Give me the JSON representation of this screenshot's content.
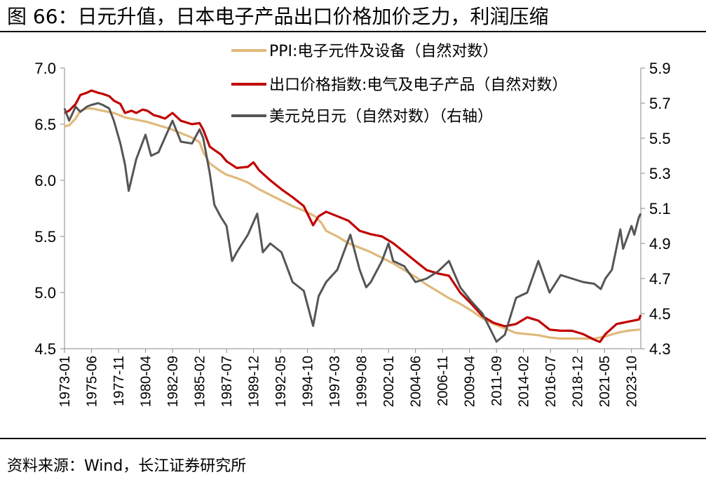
{
  "figure": {
    "title": "图 66：日元升值，日本电子产品出口价格加价乏力，利润压缩",
    "source": "资料来源：Wind，长江证券研究所"
  },
  "chart_data": {
    "type": "line",
    "x_tick_labels": [
      "1973-01",
      "1975-06",
      "1977-11",
      "1980-04",
      "1982-09",
      "1985-02",
      "1987-07",
      "1989-12",
      "1992-05",
      "1994-10",
      "1997-03",
      "1999-08",
      "2002-01",
      "2004-06",
      "2006-11",
      "2009-04",
      "2011-09",
      "2014-02",
      "2016-07",
      "2018-12",
      "2021-05",
      "2023-10"
    ],
    "x_range": [
      "1973-01",
      "2024-08"
    ],
    "y_left": {
      "range": [
        4.5,
        7.0
      ],
      "ticks": [
        "4.5",
        "5.0",
        "5.5",
        "6.0",
        "6.5",
        "7.0"
      ]
    },
    "y_right": {
      "range": [
        4.3,
        5.9
      ],
      "ticks": [
        "4.3",
        "4.5",
        "4.7",
        "4.9",
        "5.1",
        "5.3",
        "5.5",
        "5.7",
        "5.9"
      ]
    },
    "legend_position": "top-right",
    "grid": false,
    "series": [
      {
        "name": "PPI:电子元件及设备（自然对数）",
        "axis": "left",
        "color": "#e0b97a",
        "points": [
          [
            "1973-01",
            6.48
          ],
          [
            "1973-06",
            6.49
          ],
          [
            "1974-01",
            6.55
          ],
          [
            "1974-06",
            6.62
          ],
          [
            "1975-01",
            6.64
          ],
          [
            "1975-06",
            6.64
          ],
          [
            "1976-06",
            6.62
          ],
          [
            "1977-06",
            6.6
          ],
          [
            "1978-06",
            6.56
          ],
          [
            "1979-06",
            6.54
          ],
          [
            "1980-06",
            6.52
          ],
          [
            "1981-06",
            6.49
          ],
          [
            "1982-06",
            6.46
          ],
          [
            "1983-06",
            6.42
          ],
          [
            "1984-06",
            6.38
          ],
          [
            "1985-02",
            6.34
          ],
          [
            "1985-06",
            6.25
          ],
          [
            "1986-01",
            6.15
          ],
          [
            "1987-01",
            6.08
          ],
          [
            "1987-07",
            6.05
          ],
          [
            "1988-06",
            6.02
          ],
          [
            "1989-06",
            5.98
          ],
          [
            "1990-06",
            5.92
          ],
          [
            "1991-06",
            5.87
          ],
          [
            "1992-06",
            5.82
          ],
          [
            "1993-06",
            5.77
          ],
          [
            "1994-06",
            5.73
          ],
          [
            "1995-06",
            5.68
          ],
          [
            "1996-01",
            5.62
          ],
          [
            "1996-06",
            5.55
          ],
          [
            "1997-06",
            5.5
          ],
          [
            "1998-06",
            5.44
          ],
          [
            "1999-06",
            5.4
          ],
          [
            "2000-06",
            5.36
          ],
          [
            "2001-06",
            5.31
          ],
          [
            "2002-06",
            5.26
          ],
          [
            "2003-06",
            5.2
          ],
          [
            "2004-06",
            5.14
          ],
          [
            "2005-06",
            5.07
          ],
          [
            "2006-06",
            5.01
          ],
          [
            "2007-06",
            4.95
          ],
          [
            "2008-06",
            4.9
          ],
          [
            "2009-06",
            4.84
          ],
          [
            "2010-06",
            4.77
          ],
          [
            "2011-06",
            4.72
          ],
          [
            "2012-06",
            4.68
          ],
          [
            "2013-06",
            4.64
          ],
          [
            "2014-06",
            4.63
          ],
          [
            "2015-06",
            4.62
          ],
          [
            "2016-06",
            4.6
          ],
          [
            "2017-06",
            4.59
          ],
          [
            "2018-06",
            4.59
          ],
          [
            "2019-06",
            4.59
          ],
          [
            "2020-06",
            4.59
          ],
          [
            "2021-06",
            4.61
          ],
          [
            "2022-06",
            4.64
          ],
          [
            "2023-06",
            4.66
          ],
          [
            "2024-06",
            4.67
          ],
          [
            "2024-08",
            4.67
          ]
        ]
      },
      {
        "name": "出口价格指数:电气及电子产品（自然对数）",
        "axis": "left",
        "color": "#c00000",
        "points": [
          [
            "1973-01",
            6.6
          ],
          [
            "1973-06",
            6.62
          ],
          [
            "1974-01",
            6.68
          ],
          [
            "1974-06",
            6.76
          ],
          [
            "1975-01",
            6.78
          ],
          [
            "1975-06",
            6.8
          ],
          [
            "1976-01",
            6.78
          ],
          [
            "1976-06",
            6.77
          ],
          [
            "1977-01",
            6.75
          ],
          [
            "1977-06",
            6.71
          ],
          [
            "1978-01",
            6.68
          ],
          [
            "1978-06",
            6.6
          ],
          [
            "1979-01",
            6.62
          ],
          [
            "1979-06",
            6.6
          ],
          [
            "1980-01",
            6.63
          ],
          [
            "1980-06",
            6.62
          ],
          [
            "1981-01",
            6.58
          ],
          [
            "1981-06",
            6.57
          ],
          [
            "1982-01",
            6.55
          ],
          [
            "1982-09",
            6.6
          ],
          [
            "1983-06",
            6.53
          ],
          [
            "1984-06",
            6.5
          ],
          [
            "1985-02",
            6.51
          ],
          [
            "1985-06",
            6.45
          ],
          [
            "1986-01",
            6.3
          ],
          [
            "1986-06",
            6.27
          ],
          [
            "1987-01",
            6.23
          ],
          [
            "1987-07",
            6.17
          ],
          [
            "1988-06",
            6.11
          ],
          [
            "1989-06",
            6.12
          ],
          [
            "1989-12",
            6.16
          ],
          [
            "1990-06",
            6.09
          ],
          [
            "1991-06",
            6.0
          ],
          [
            "1992-06",
            5.92
          ],
          [
            "1993-06",
            5.85
          ],
          [
            "1994-06",
            5.77
          ],
          [
            "1995-04",
            5.6
          ],
          [
            "1995-10",
            5.68
          ],
          [
            "1996-06",
            5.72
          ],
          [
            "1997-06",
            5.68
          ],
          [
            "1998-06",
            5.64
          ],
          [
            "1999-06",
            5.55
          ],
          [
            "2000-06",
            5.52
          ],
          [
            "2001-06",
            5.5
          ],
          [
            "2002-06",
            5.44
          ],
          [
            "2003-06",
            5.36
          ],
          [
            "2004-06",
            5.28
          ],
          [
            "2005-06",
            5.2
          ],
          [
            "2006-06",
            5.17
          ],
          [
            "2007-06",
            5.15
          ],
          [
            "2008-06",
            5.0
          ],
          [
            "2009-06",
            4.9
          ],
          [
            "2010-06",
            4.79
          ],
          [
            "2011-06",
            4.73
          ],
          [
            "2012-06",
            4.7
          ],
          [
            "2013-06",
            4.72
          ],
          [
            "2014-06",
            4.78
          ],
          [
            "2015-06",
            4.75
          ],
          [
            "2016-06",
            4.67
          ],
          [
            "2017-06",
            4.66
          ],
          [
            "2018-06",
            4.66
          ],
          [
            "2019-06",
            4.63
          ],
          [
            "2020-06",
            4.58
          ],
          [
            "2020-12",
            4.56
          ],
          [
            "2021-06",
            4.63
          ],
          [
            "2022-06",
            4.72
          ],
          [
            "2023-06",
            4.74
          ],
          [
            "2024-06",
            4.76
          ],
          [
            "2024-08",
            4.8
          ]
        ]
      },
      {
        "name": "美元兑日元（自然对数）（右轴）",
        "axis": "right",
        "color": "#555555",
        "points": [
          [
            "1973-01",
            5.67
          ],
          [
            "1973-06",
            5.6
          ],
          [
            "1974-01",
            5.68
          ],
          [
            "1974-06",
            5.65
          ],
          [
            "1975-01",
            5.68
          ],
          [
            "1975-06",
            5.69
          ],
          [
            "1976-01",
            5.7
          ],
          [
            "1976-06",
            5.69
          ],
          [
            "1977-01",
            5.67
          ],
          [
            "1977-06",
            5.6
          ],
          [
            "1978-01",
            5.47
          ],
          [
            "1978-06",
            5.35
          ],
          [
            "1978-10",
            5.2
          ],
          [
            "1979-06",
            5.38
          ],
          [
            "1980-04",
            5.52
          ],
          [
            "1980-10",
            5.4
          ],
          [
            "1981-06",
            5.42
          ],
          [
            "1982-09",
            5.6
          ],
          [
            "1983-06",
            5.48
          ],
          [
            "1984-06",
            5.47
          ],
          [
            "1985-02",
            5.55
          ],
          [
            "1985-06",
            5.5
          ],
          [
            "1986-01",
            5.3
          ],
          [
            "1986-06",
            5.12
          ],
          [
            "1987-01",
            5.05
          ],
          [
            "1987-07",
            5.0
          ],
          [
            "1988-01",
            4.8
          ],
          [
            "1988-06",
            4.85
          ],
          [
            "1989-06",
            4.95
          ],
          [
            "1990-04",
            5.07
          ],
          [
            "1990-10",
            4.85
          ],
          [
            "1991-06",
            4.9
          ],
          [
            "1992-06",
            4.85
          ],
          [
            "1993-06",
            4.68
          ],
          [
            "1994-06",
            4.63
          ],
          [
            "1995-04",
            4.43
          ],
          [
            "1995-10",
            4.6
          ],
          [
            "1996-06",
            4.68
          ],
          [
            "1997-06",
            4.75
          ],
          [
            "1998-08",
            4.95
          ],
          [
            "1999-06",
            4.75
          ],
          [
            "2000-01",
            4.65
          ],
          [
            "2000-06",
            4.68
          ],
          [
            "2001-06",
            4.8
          ],
          [
            "2002-01",
            4.9
          ],
          [
            "2002-06",
            4.8
          ],
          [
            "2003-06",
            4.77
          ],
          [
            "2004-06",
            4.68
          ],
          [
            "2005-06",
            4.7
          ],
          [
            "2006-06",
            4.74
          ],
          [
            "2007-06",
            4.8
          ],
          [
            "2008-06",
            4.65
          ],
          [
            "2009-06",
            4.57
          ],
          [
            "2010-06",
            4.5
          ],
          [
            "2011-09",
            4.34
          ],
          [
            "2012-06",
            4.38
          ],
          [
            "2013-06",
            4.59
          ],
          [
            "2014-06",
            4.62
          ],
          [
            "2015-06",
            4.8
          ],
          [
            "2016-06",
            4.62
          ],
          [
            "2017-06",
            4.72
          ],
          [
            "2018-06",
            4.7
          ],
          [
            "2019-06",
            4.68
          ],
          [
            "2020-06",
            4.67
          ],
          [
            "2021-01",
            4.64
          ],
          [
            "2021-06",
            4.7
          ],
          [
            "2022-01",
            4.75
          ],
          [
            "2022-10",
            4.98
          ],
          [
            "2023-01",
            4.87
          ],
          [
            "2023-10",
            5.0
          ],
          [
            "2024-01",
            4.95
          ],
          [
            "2024-06",
            5.05
          ],
          [
            "2024-08",
            5.07
          ]
        ]
      }
    ]
  }
}
